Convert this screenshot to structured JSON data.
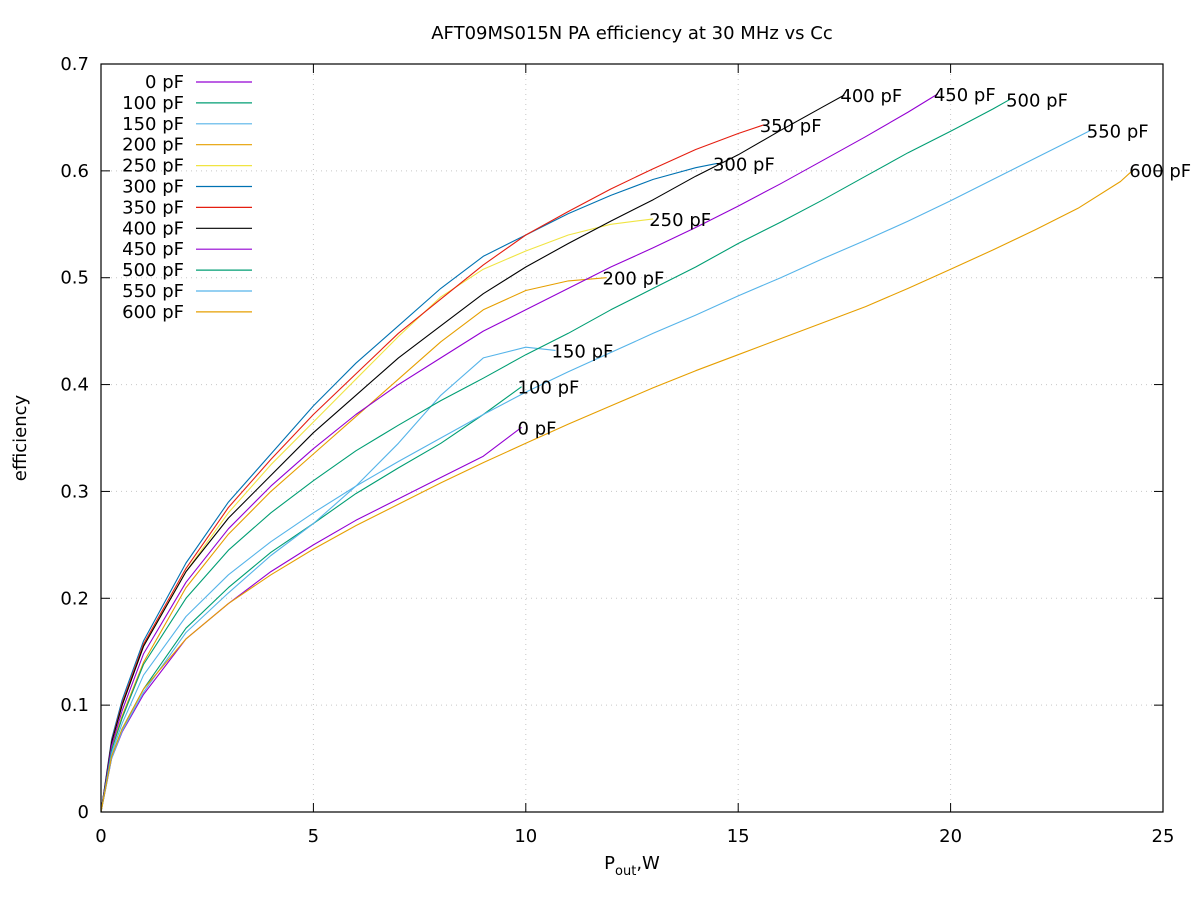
{
  "chart_data": {
    "type": "line",
    "title": "AFT09MS015N PA efficiency at 30 MHz vs Cc",
    "xlabel_main": "P",
    "xlabel_sub": "out",
    "xlabel_tail": ",W",
    "ylabel": "efficiency",
    "xlim": [
      0,
      25
    ],
    "ylim": [
      0,
      0.7
    ],
    "xticks": [
      0,
      5,
      10,
      15,
      20,
      25
    ],
    "xtick_labels": [
      "0",
      "5",
      "10",
      "15",
      "20",
      "25"
    ],
    "yticks": [
      0,
      0.1,
      0.2,
      0.3,
      0.4,
      0.5,
      0.6,
      0.7
    ],
    "ytick_labels": [
      "0",
      "0.1",
      "0.2",
      "0.3",
      "0.4",
      "0.5",
      "0.6",
      "0.7"
    ],
    "grid": true,
    "legend_position": "top-left",
    "series": [
      {
        "name": "0 pF",
        "color": "#9400d3",
        "end_label": "0 pF",
        "x": [
          0,
          0.25,
          0.5,
          1,
          2,
          3,
          4,
          5,
          6,
          7,
          8,
          9,
          9.9
        ],
        "y": [
          0,
          0.05,
          0.075,
          0.11,
          0.162,
          0.195,
          0.225,
          0.25,
          0.273,
          0.293,
          0.313,
          0.333,
          0.36
        ]
      },
      {
        "name": "100 pF",
        "color": "#009e73",
        "end_label": "100 pF",
        "x": [
          0,
          0.25,
          0.5,
          1,
          2,
          3,
          4,
          5,
          6,
          7,
          8,
          9,
          9.9
        ],
        "y": [
          0,
          0.052,
          0.078,
          0.115,
          0.172,
          0.21,
          0.243,
          0.27,
          0.298,
          0.322,
          0.345,
          0.372,
          0.398
        ]
      },
      {
        "name": "150 pF",
        "color": "#56b4e9",
        "end_label": "150 pF",
        "x": [
          0,
          0.25,
          0.5,
          1,
          2,
          3,
          4,
          5,
          6,
          7,
          8,
          9,
          10,
          10.7
        ],
        "y": [
          0,
          0.05,
          0.076,
          0.112,
          0.168,
          0.205,
          0.24,
          0.27,
          0.305,
          0.345,
          0.39,
          0.425,
          0.435,
          0.432
        ]
      },
      {
        "name": "200 pF",
        "color": "#e69f00",
        "end_label": "200 pF",
        "x": [
          0,
          0.25,
          0.5,
          1,
          2,
          3,
          4,
          5,
          6,
          7,
          8,
          9,
          10,
          11,
          11.9
        ],
        "y": [
          0,
          0.06,
          0.09,
          0.14,
          0.21,
          0.26,
          0.3,
          0.335,
          0.37,
          0.405,
          0.44,
          0.47,
          0.488,
          0.497,
          0.5
        ]
      },
      {
        "name": "250 pF",
        "color": "#f0e442",
        "end_label": "250 pF",
        "x": [
          0,
          0.25,
          0.5,
          1,
          2,
          3,
          4,
          5,
          6,
          7,
          8,
          9,
          10,
          11,
          12,
          13
        ],
        "y": [
          0,
          0.065,
          0.1,
          0.155,
          0.225,
          0.28,
          0.325,
          0.365,
          0.405,
          0.445,
          0.482,
          0.508,
          0.525,
          0.54,
          0.55,
          0.555
        ]
      },
      {
        "name": "300 pF",
        "color": "#0072b2",
        "end_label": "300 pF",
        "x": [
          0,
          0.25,
          0.5,
          1,
          2,
          3,
          4,
          5,
          6,
          7,
          8,
          9,
          10,
          11,
          12,
          13,
          14,
          14.5
        ],
        "y": [
          0,
          0.068,
          0.105,
          0.16,
          0.233,
          0.29,
          0.335,
          0.38,
          0.42,
          0.455,
          0.49,
          0.52,
          0.54,
          0.56,
          0.577,
          0.592,
          0.603,
          0.607
        ]
      },
      {
        "name": "350 pF",
        "color": "#e51e10",
        "end_label": "350 pF",
        "x": [
          0,
          0.25,
          0.5,
          1,
          2,
          3,
          4,
          5,
          6,
          7,
          8,
          9,
          10,
          11,
          12,
          13,
          14,
          15,
          15.6
        ],
        "y": [
          0,
          0.066,
          0.102,
          0.157,
          0.228,
          0.285,
          0.33,
          0.372,
          0.41,
          0.448,
          0.48,
          0.512,
          0.54,
          0.562,
          0.583,
          0.602,
          0.62,
          0.635,
          0.643
        ]
      },
      {
        "name": "400 pF",
        "color": "#000000",
        "end_label": "400 pF",
        "x": [
          0,
          0.25,
          0.5,
          1,
          2,
          3,
          4,
          5,
          6,
          7,
          8,
          9,
          10,
          11,
          12,
          13,
          14,
          15,
          16,
          17,
          17.5
        ],
        "y": [
          0,
          0.065,
          0.1,
          0.155,
          0.225,
          0.275,
          0.315,
          0.355,
          0.39,
          0.425,
          0.455,
          0.485,
          0.51,
          0.532,
          0.553,
          0.573,
          0.595,
          0.615,
          0.638,
          0.66,
          0.671
        ]
      },
      {
        "name": "450 pF",
        "color": "#9400d3",
        "end_label": "450 pF",
        "x": [
          0,
          0.25,
          0.5,
          1,
          2,
          3,
          4,
          5,
          6,
          7,
          8,
          9,
          10,
          11,
          12,
          13,
          14,
          15,
          16,
          17,
          18,
          19,
          19.7
        ],
        "y": [
          0,
          0.062,
          0.095,
          0.148,
          0.215,
          0.265,
          0.305,
          0.34,
          0.372,
          0.4,
          0.425,
          0.45,
          0.47,
          0.49,
          0.51,
          0.528,
          0.547,
          0.567,
          0.588,
          0.61,
          0.632,
          0.655,
          0.672
        ]
      },
      {
        "name": "500 pF",
        "color": "#009e73",
        "end_label": "500 pF",
        "x": [
          0,
          0.25,
          0.5,
          1,
          2,
          3,
          4,
          5,
          6,
          7,
          8,
          9,
          10,
          11,
          12,
          13,
          14,
          15,
          16,
          17,
          18,
          19,
          20,
          21,
          21.4
        ],
        "y": [
          0,
          0.058,
          0.088,
          0.138,
          0.2,
          0.245,
          0.28,
          0.31,
          0.338,
          0.362,
          0.385,
          0.406,
          0.428,
          0.448,
          0.47,
          0.49,
          0.51,
          0.532,
          0.552,
          0.573,
          0.595,
          0.617,
          0.637,
          0.658,
          0.667
        ]
      },
      {
        "name": "550 pF",
        "color": "#56b4e9",
        "end_label": "550 pF",
        "x": [
          0,
          0.25,
          0.5,
          1,
          2,
          3,
          4,
          5,
          6,
          7,
          8,
          9,
          10,
          11,
          12,
          13,
          14,
          15,
          16,
          17,
          18,
          19,
          20,
          21,
          22,
          23,
          23.3
        ],
        "y": [
          0,
          0.055,
          0.083,
          0.128,
          0.183,
          0.222,
          0.253,
          0.28,
          0.305,
          0.328,
          0.35,
          0.372,
          0.393,
          0.412,
          0.43,
          0.448,
          0.465,
          0.483,
          0.5,
          0.518,
          0.535,
          0.553,
          0.572,
          0.592,
          0.612,
          0.632,
          0.638
        ]
      },
      {
        "name": "600 pF",
        "color": "#e69f00",
        "end_label": "600 pF",
        "x": [
          0,
          0.25,
          0.5,
          1,
          2,
          3,
          4,
          5,
          6,
          7,
          8,
          9,
          10,
          11,
          12,
          13,
          14,
          15,
          16,
          17,
          18,
          19,
          20,
          21,
          22,
          23,
          24,
          24.3
        ],
        "y": [
          0,
          0.052,
          0.078,
          0.115,
          0.162,
          0.195,
          0.222,
          0.246,
          0.268,
          0.288,
          0.308,
          0.327,
          0.345,
          0.363,
          0.38,
          0.397,
          0.413,
          0.428,
          0.443,
          0.458,
          0.473,
          0.49,
          0.508,
          0.526,
          0.545,
          0.565,
          0.59,
          0.601
        ]
      }
    ]
  }
}
